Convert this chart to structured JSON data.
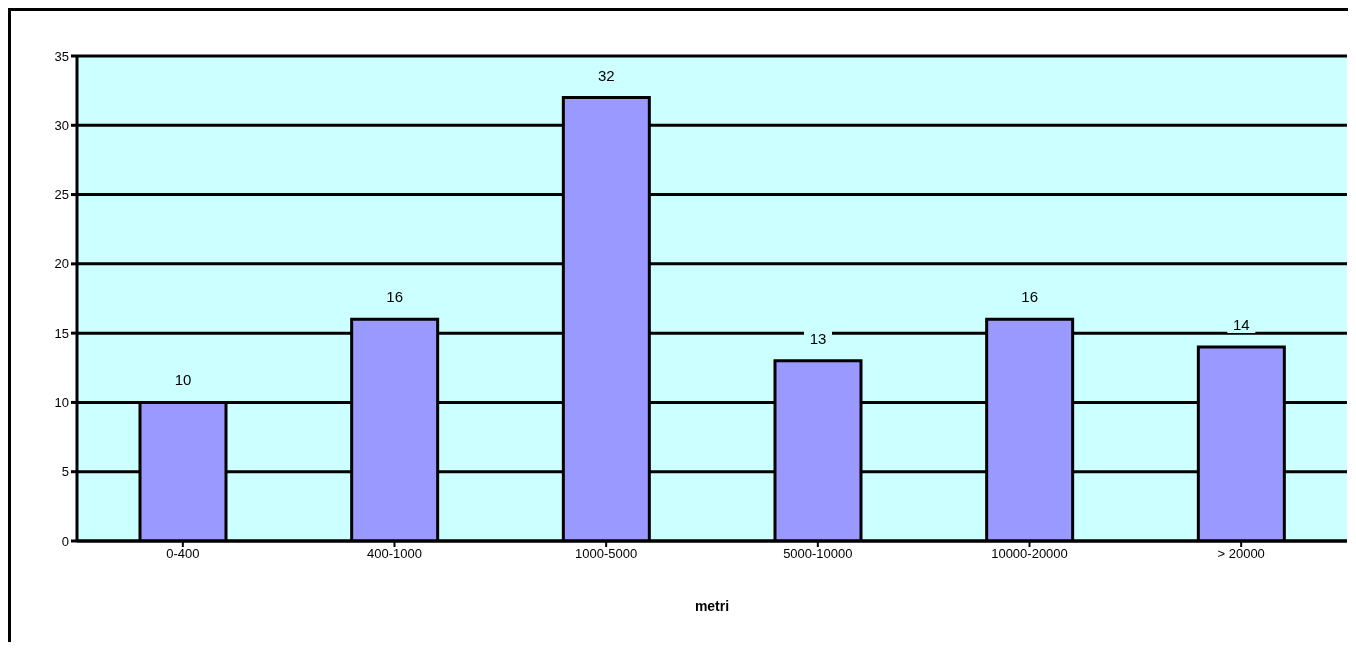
{
  "chart_data": {
    "type": "bar",
    "xlabel": "metri",
    "categories": [
      "0-400",
      "400-1000",
      "1000-5000",
      "5000-10000",
      "10000-20000",
      "> 20000"
    ],
    "values": [
      10,
      16,
      32,
      13,
      16,
      14
    ],
    "color": "#9999ff",
    "ylim": [
      0,
      35
    ],
    "yticks": [
      0,
      5,
      10,
      15,
      20,
      25,
      30,
      35
    ],
    "grid": "y",
    "data_labels": true
  }
}
